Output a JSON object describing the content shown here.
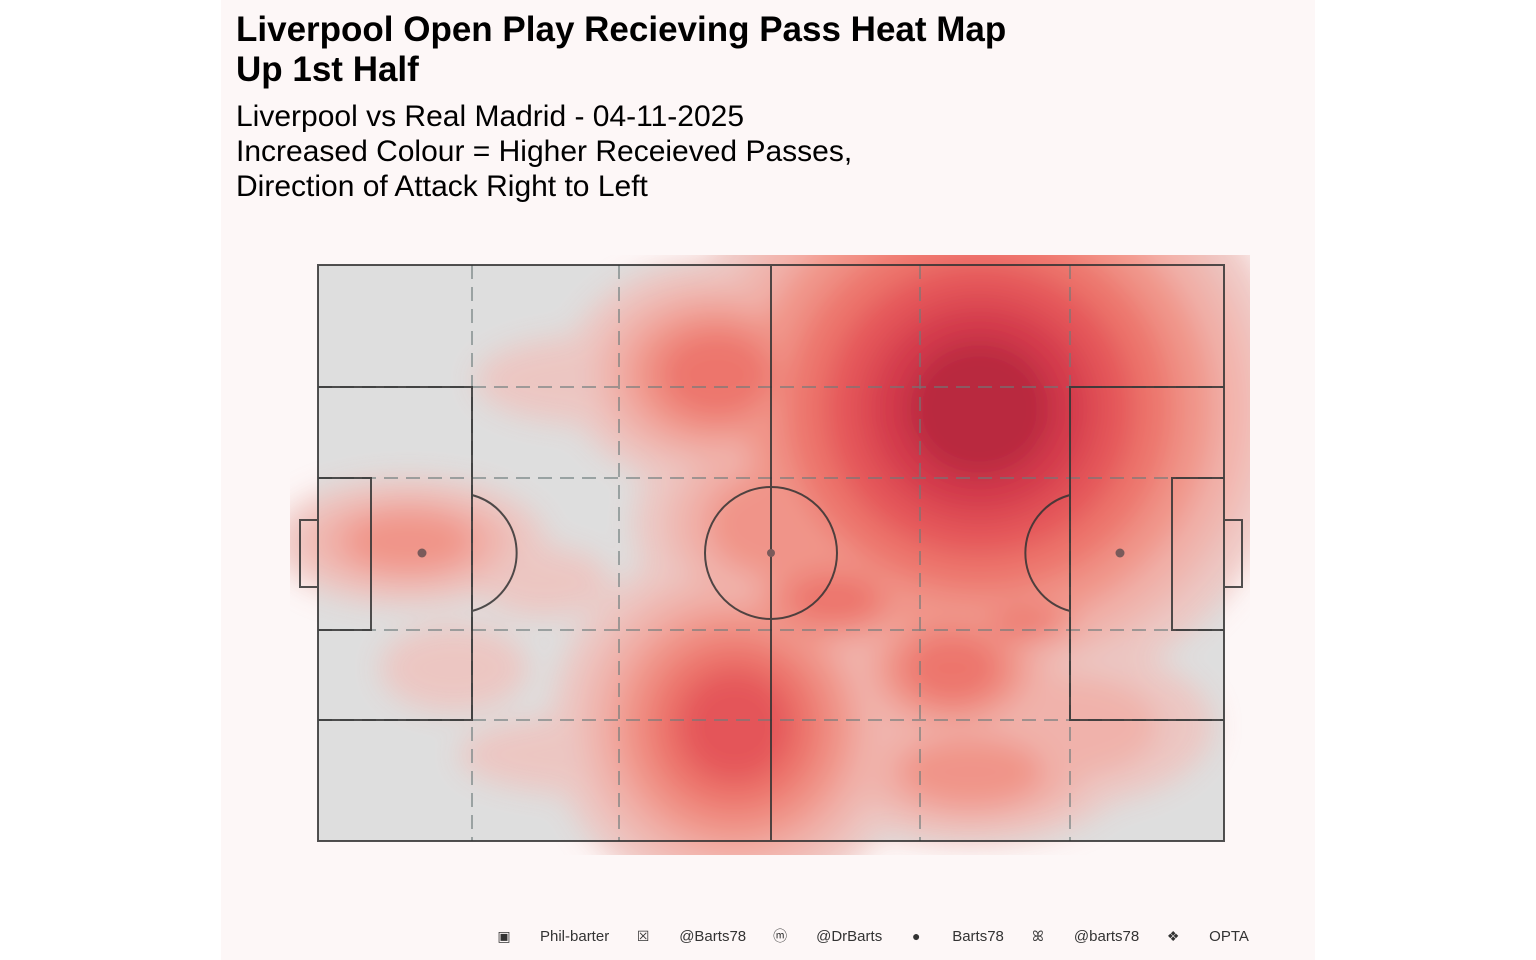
{
  "title": "Liverpool Open Play Recieving Pass Heat Map\nUp 1st Half",
  "subtitle": [
    "Liverpool vs Real Madrid - 04-11-2025",
    "Increased Colour = Higher Receieved Passes,",
    "Direction of Attack Right to Left"
  ],
  "footer": [
    {
      "icon": "linkedin-icon",
      "text": "Phil-barter"
    },
    {
      "icon": "x-twitter-icon",
      "text": "@Barts78"
    },
    {
      "icon": "mastodon-icon",
      "text": "@DrBarts"
    },
    {
      "icon": "github-icon",
      "text": "Barts78"
    },
    {
      "icon": "bluesky-butterfly-icon",
      "text": "@barts78"
    },
    {
      "icon": "dropbox-icon",
      "text": "OPTA"
    }
  ],
  "colors": {
    "background": "#fdf7f7",
    "pitch": "#dedede",
    "lines": "#333333",
    "low": "#eec4c0",
    "high": "#b5142f"
  },
  "chart_data": {
    "type": "heatmap",
    "pitch_scale": [
      0,
      100
    ],
    "levels": [
      "#eec4c0",
      "#f2aea6",
      "#f28d80",
      "#ef6a60",
      "#e5474b",
      "#d42a3e",
      "#b5142f"
    ],
    "hotspots": [
      {
        "x": 73,
        "y": 25,
        "spread_x": 9,
        "spread_y": 16,
        "level": 7
      },
      {
        "x": 44,
        "y": 19,
        "spread_x": 7,
        "spread_y": 10,
        "level": 4
      },
      {
        "x": 46,
        "y": 80,
        "spread_x": 7,
        "spread_y": 13,
        "level": 5
      },
      {
        "x": 57,
        "y": 58,
        "spread_x": 6,
        "spread_y": 6,
        "level": 4
      },
      {
        "x": 10,
        "y": 48,
        "spread_x": 8,
        "spread_y": 7,
        "level": 3
      },
      {
        "x": 70,
        "y": 70,
        "spread_x": 6,
        "spread_y": 8,
        "level": 4
      },
      {
        "x": 78,
        "y": 62,
        "spread_x": 4,
        "spread_y": 3,
        "level": 4
      },
      {
        "x": 72,
        "y": 88,
        "spread_x": 9,
        "spread_y": 8,
        "level": 3
      },
      {
        "x": 85,
        "y": 42,
        "spread_x": 10,
        "spread_y": 15,
        "level": 2
      },
      {
        "x": 50,
        "y": 45,
        "spread_x": 8,
        "spread_y": 12,
        "level": 3
      },
      {
        "x": 15,
        "y": 70,
        "spread_x": 9,
        "spread_y": 10,
        "level": 1
      },
      {
        "x": 30,
        "y": 20,
        "spread_x": 14,
        "spread_y": 10,
        "level": 1
      },
      {
        "x": 82,
        "y": 80,
        "spread_x": 12,
        "spread_y": 12,
        "level": 2
      },
      {
        "x": 30,
        "y": 85,
        "spread_x": 16,
        "spread_y": 9,
        "level": 1
      },
      {
        "x": 25,
        "y": 55,
        "spread_x": 8,
        "spread_y": 8,
        "level": 1
      }
    ]
  }
}
